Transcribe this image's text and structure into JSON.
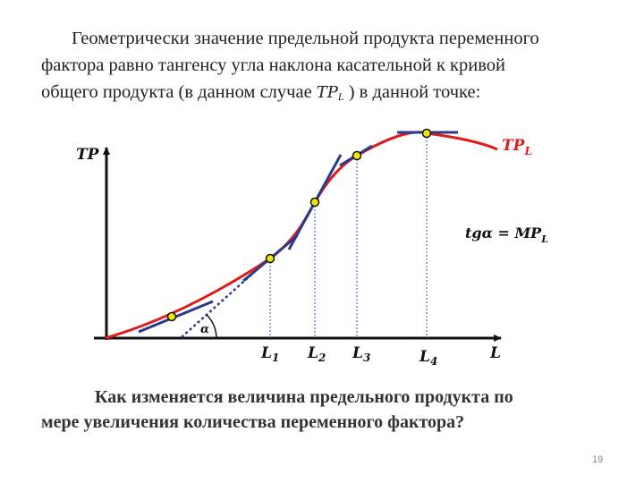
{
  "intro": {
    "line1": "Геометрически значение предельной продукта переменного",
    "line2": "фактора равно тангенсу угла наклона касательной к кривой",
    "line3_before": "общего продукта (в данном случае ",
    "line3_tp": "TP",
    "line3_sub": "L",
    "line3_after": " ) в данной точке:"
  },
  "diagram": {
    "y_axis_label": "TP",
    "x_axis_label": "L",
    "curve_label": "TP",
    "curve_label_sub": "L",
    "formula": "tgα = MP",
    "formula_sub": "L",
    "angle_label": "α",
    "ticks": [
      {
        "name": "L",
        "sub": "1"
      },
      {
        "name": "L",
        "sub": "2"
      },
      {
        "name": "L",
        "sub": "3"
      },
      {
        "name": "L",
        "sub": "4"
      }
    ],
    "colors": {
      "curve": "#e01b1b",
      "tangent": "#2b3a8c",
      "point_fill": "#f2e600",
      "axis": "#111111",
      "guide": "#3a53b0"
    }
  },
  "question": {
    "line1": "Как изменяется величина предельного продукта по",
    "line2": "мере увеличения количества переменного фактора?"
  },
  "slide_number": "19"
}
